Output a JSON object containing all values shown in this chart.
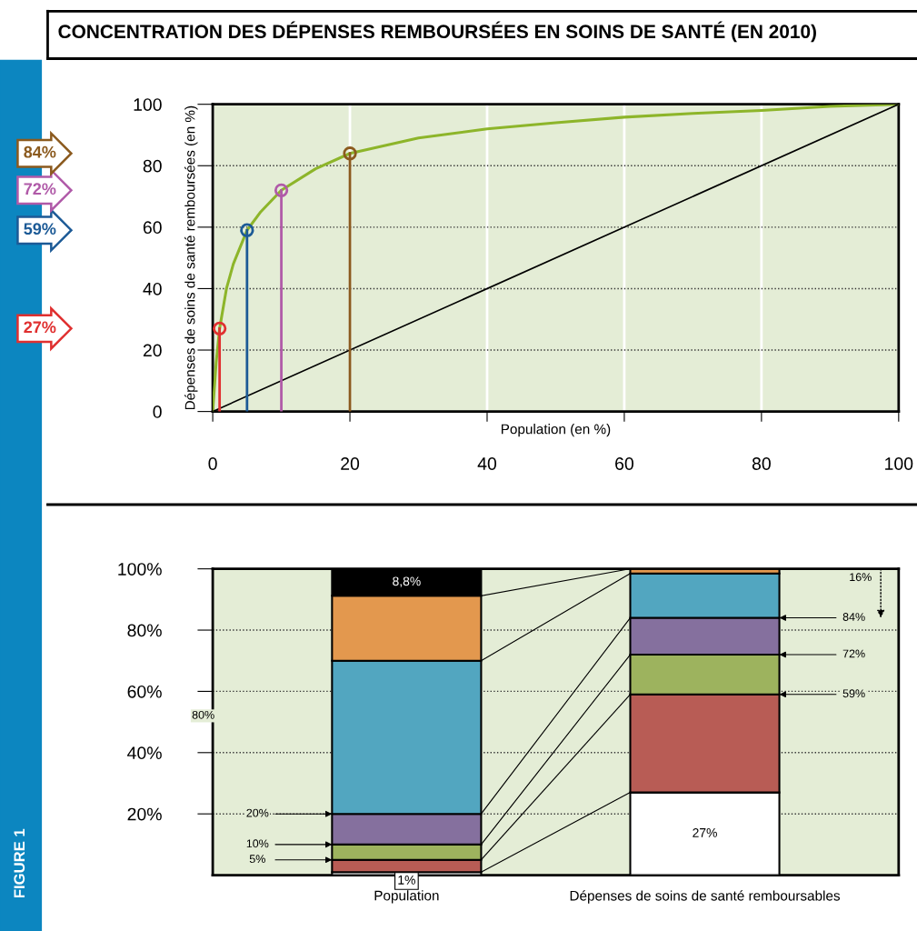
{
  "chart_data": [
    {
      "type": "line",
      "title": "CONCENTRATION DES DÉPENSES REMBOURSÉES EN SOINS DE SANTÉ (EN 2010)",
      "xlabel": "Population (en %)",
      "ylabel": "Dépenses de soins de santé remboursées (en %)",
      "xlim": [
        0,
        100
      ],
      "ylim": [
        0,
        100
      ],
      "xticks": [
        0,
        20,
        40,
        60,
        80,
        100
      ],
      "yticks": [
        0,
        20,
        40,
        60,
        80,
        100
      ],
      "grid": true,
      "legend": false,
      "annotations": [
        "27%",
        "59%",
        "72%",
        "84%",
        "FIGURE 1"
      ],
      "series": [
        {
          "type": "line",
          "color": "#8db52a",
          "x": [
            0,
            0.5,
            1,
            2,
            3,
            5,
            7,
            10,
            15,
            20,
            30,
            40,
            50,
            60,
            70,
            80,
            90,
            100
          ],
          "values": [
            0,
            16,
            27,
            40,
            48,
            59,
            65,
            72,
            79,
            84,
            89,
            92,
            94,
            95.8,
            97,
            98,
            99.3,
            100
          ]
        },
        {
          "type": "line",
          "color": "#000000",
          "x": [
            0,
            100
          ],
          "values": [
            0,
            100
          ]
        },
        {
          "type": "lollipop",
          "marker": "circle",
          "x": [
            1,
            5,
            10,
            20
          ],
          "values": [
            27,
            59,
            72,
            84
          ],
          "colors": [
            "#e03030",
            "#1c5a96",
            "#b05aa8",
            "#8b5a1e"
          ]
        }
      ]
    },
    {
      "type": "bar",
      "stacked": true,
      "categories": [
        "Population",
        "Dépenses de soins de santé remboursables"
      ],
      "ylim": [
        0,
        100
      ],
      "yticks": [
        {
          "value": 20,
          "label": "20%"
        },
        {
          "value": 40,
          "label": "40%"
        },
        {
          "value": 60,
          "label": "60%"
        },
        {
          "value": 80,
          "label": "80%"
        },
        {
          "value": 100,
          "label": "100%"
        }
      ],
      "grid": "y",
      "legend": false,
      "series": [
        {
          "color": "#ffffff",
          "values": [
            1,
            27
          ],
          "value_labels": [
            "1%",
            "27%"
          ]
        },
        {
          "color": "#b85c55",
          "values": [
            4,
            32
          ]
        },
        {
          "color": "#9db35e",
          "values": [
            5,
            13
          ]
        },
        {
          "color": "#85709e",
          "values": [
            10,
            12
          ]
        },
        {
          "color": "#52a6c0",
          "values": [
            50,
            14.5
          ]
        },
        {
          "color": "#e3984e",
          "values": [
            21.2,
            1.5
          ]
        },
        {
          "color": "#000000",
          "values": [
            8.8,
            0
          ],
          "value_labels": [
            "8,8%",
            null
          ]
        }
      ],
      "annotations": [
        "5%",
        "10%",
        "20%",
        "80%",
        "59%",
        "72%",
        "84%",
        "16%"
      ]
    }
  ]
}
